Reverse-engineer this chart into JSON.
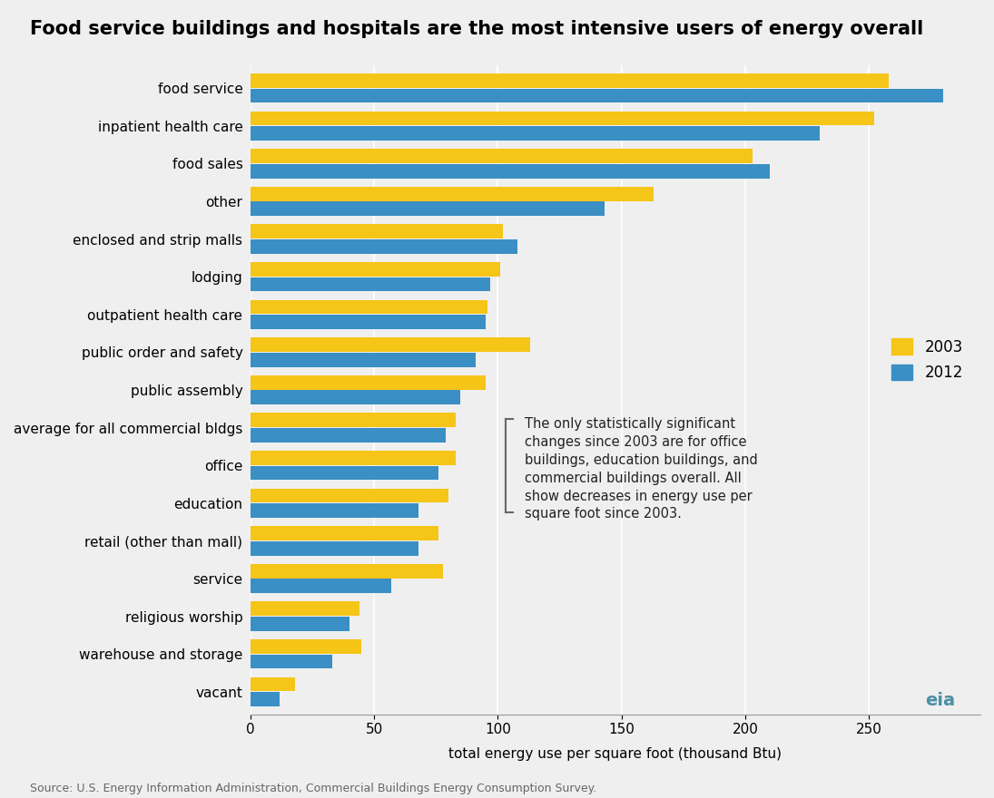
{
  "title": "Food service buildings and hospitals are the most intensive users of energy overall",
  "xlabel": "total energy use per square foot (thousand Btu)",
  "source": "Source: U.S. Energy Information Administration, Commercial Buildings Energy Consumption Survey.",
  "annotation": "The only statistically significant\nchanges since 2003 are for office\nbuildings, education buildings, and\ncommercial buildings overall. All\nshow decreases in energy use per\nsquare foot since 2003.",
  "categories": [
    "food service",
    "inpatient health care",
    "food sales",
    "other",
    "enclosed and strip malls",
    "lodging",
    "outpatient health care",
    "public order and safety",
    "public assembly",
    "average for all commercial bldgs",
    "office",
    "education",
    "retail (other than mall)",
    "service",
    "religious worship",
    "warehouse and storage",
    "vacant"
  ],
  "values_2003": [
    258,
    252,
    203,
    163,
    102,
    101,
    96,
    113,
    95,
    83,
    83,
    80,
    76,
    78,
    44,
    45,
    18
  ],
  "values_2012": [
    280,
    230,
    210,
    143,
    108,
    97,
    95,
    91,
    85,
    79,
    76,
    68,
    68,
    57,
    40,
    33,
    12
  ],
  "color_2003": "#F5C518",
  "color_2012": "#3A8FC4",
  "background_color": "#EFEFEF",
  "xlim": [
    0,
    295
  ],
  "legend_2003": "2003",
  "legend_2012": "2012",
  "title_fontsize": 15,
  "label_fontsize": 11,
  "tick_fontsize": 11,
  "source_fontsize": 9,
  "annotation_fontsize": 10.5
}
